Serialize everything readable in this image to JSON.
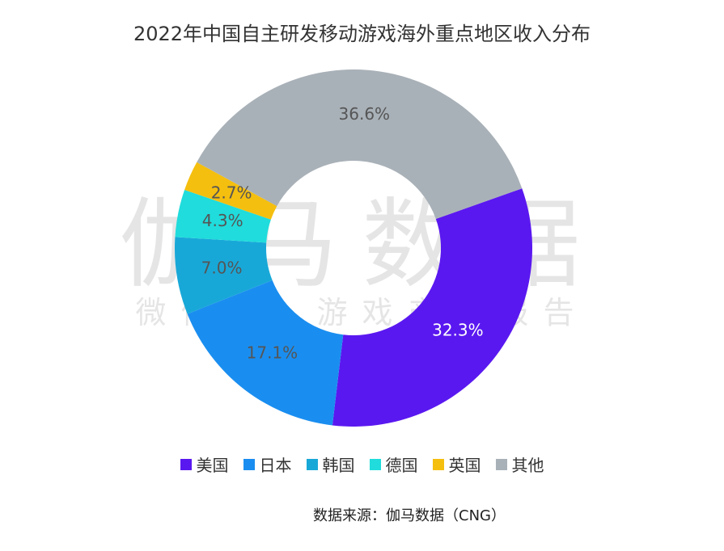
{
  "title": "2022年中国自主研发移动游戏海外重点地区收入分布",
  "watermark": {
    "main": "伽马数据",
    "sub": "微信号：游戏产业报告"
  },
  "source": "数据来源：伽马数据（CNG）",
  "chart_data": {
    "type": "pie",
    "donut": true,
    "title": "2022年中国自主研发移动游戏海外重点地区收入分布",
    "legend_position": "bottom",
    "categories": [
      "美国",
      "日本",
      "韩国",
      "德国",
      "英国",
      "其他"
    ],
    "values": [
      32.3,
      17.1,
      7.0,
      4.3,
      2.7,
      36.6
    ],
    "labels": [
      "32.3%",
      "17.1%",
      "7.0%",
      "4.3%",
      "2.7%",
      "36.6%"
    ],
    "colors": [
      "#5a18f0",
      "#1a8ef0",
      "#18a8d8",
      "#20dcdc",
      "#f5bf0f",
      "#a9b1b8"
    ],
    "label_colors": [
      "#ffffff",
      "#555555",
      "#555555",
      "#555555",
      "#555555",
      "#555555"
    ]
  }
}
